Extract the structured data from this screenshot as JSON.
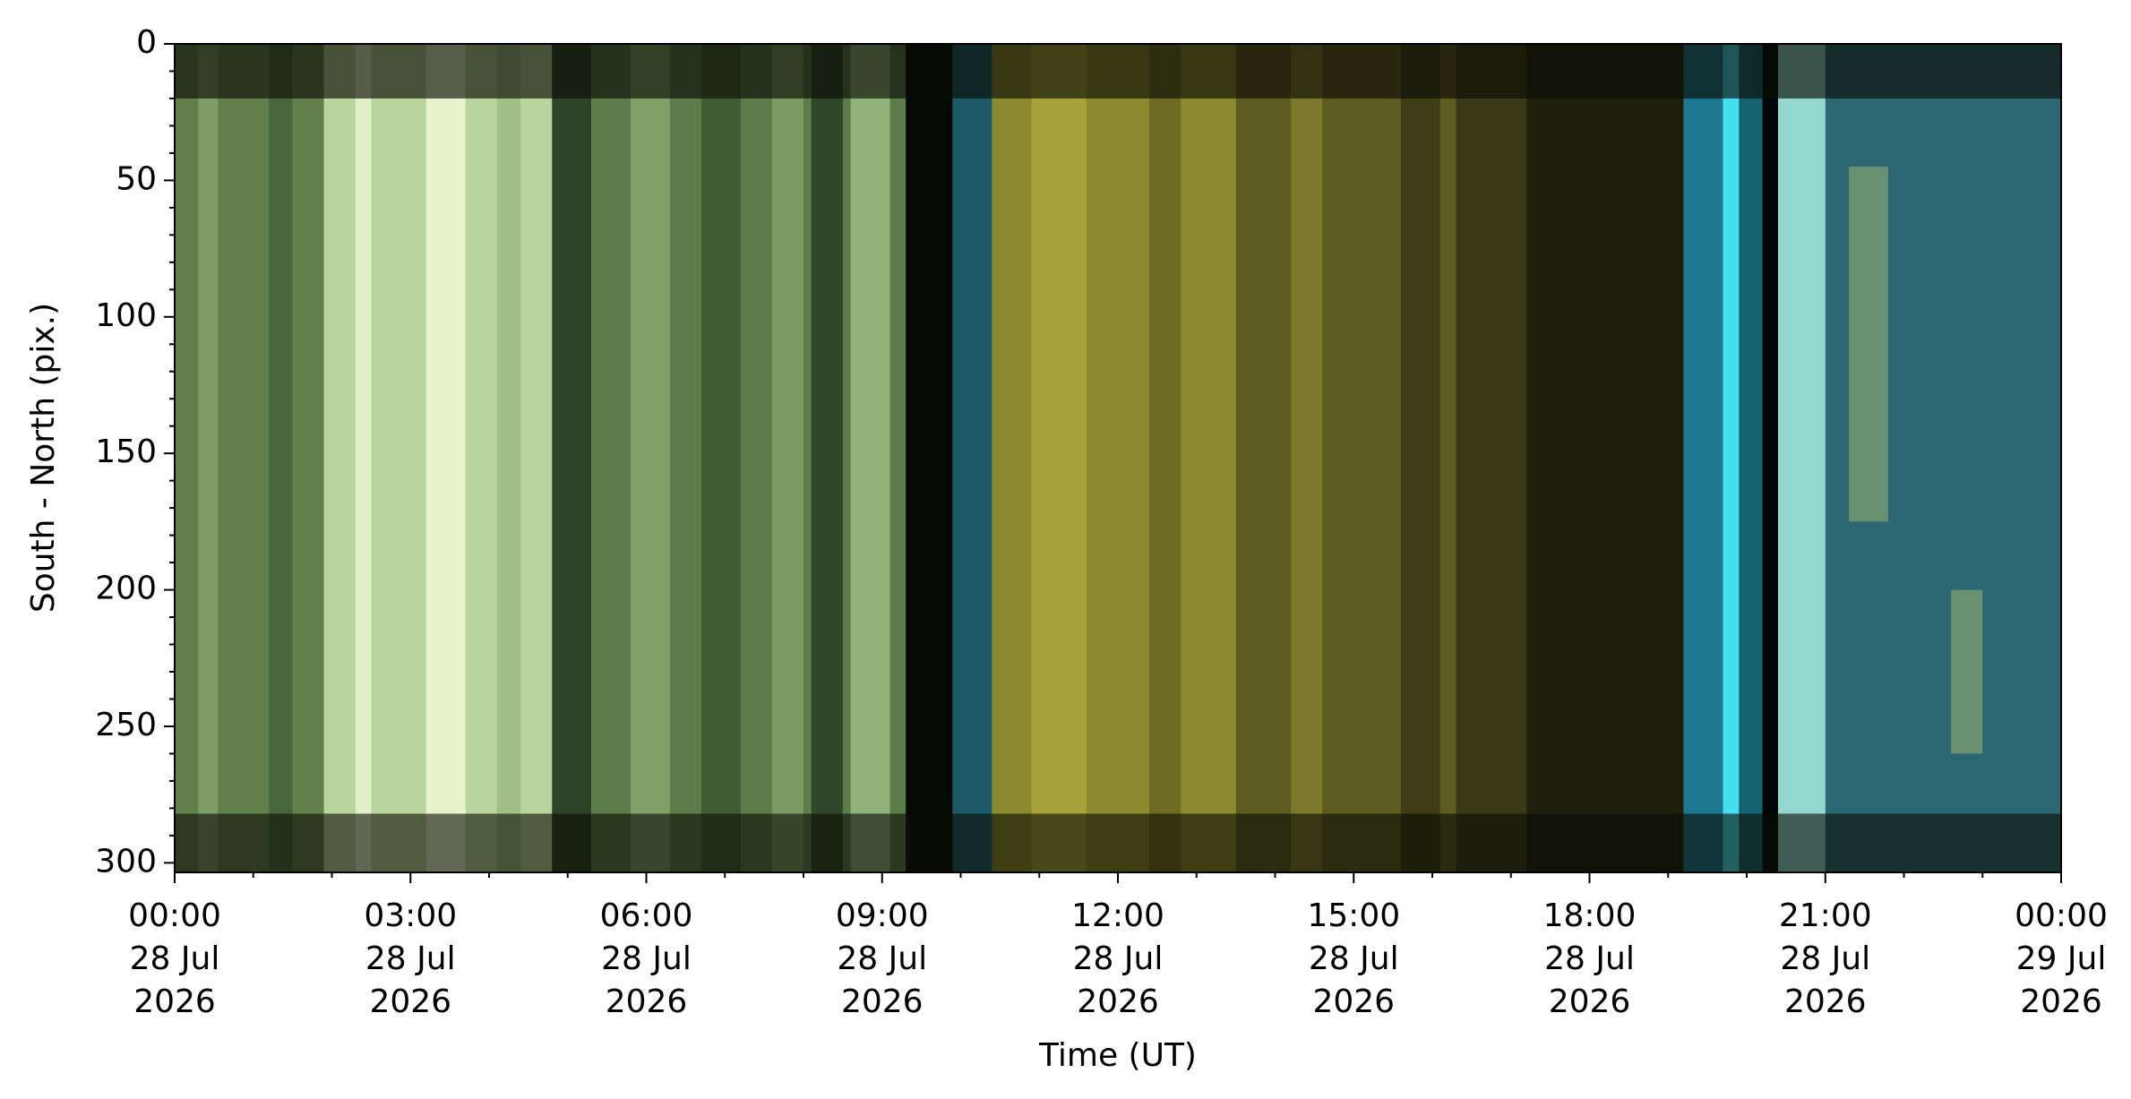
{
  "chart_data": {
    "type": "image",
    "xlabel": "Time (UT)",
    "ylabel": "South - North (pix.)",
    "xlim": [
      "2026-07-28T00:00",
      "2026-07-29T00:00"
    ],
    "xticks": [
      {
        "value": "2026-07-28T00:00",
        "label": [
          "00:00",
          "28 Jul",
          "2026"
        ]
      },
      {
        "value": "2026-07-28T03:00",
        "label": [
          "03:00",
          "28 Jul",
          "2026"
        ]
      },
      {
        "value": "2026-07-28T06:00",
        "label": [
          "06:00",
          "28 Jul",
          "2026"
        ]
      },
      {
        "value": "2026-07-28T09:00",
        "label": [
          "09:00",
          "28 Jul",
          "2026"
        ]
      },
      {
        "value": "2026-07-28T12:00",
        "label": [
          "12:00",
          "28 Jul",
          "2026"
        ]
      },
      {
        "value": "2026-07-28T15:00",
        "label": [
          "15:00",
          "28 Jul",
          "2026"
        ]
      },
      {
        "value": "2026-07-28T18:00",
        "label": [
          "18:00",
          "28 Jul",
          "2026"
        ]
      },
      {
        "value": "2026-07-28T21:00",
        "label": [
          "21:00",
          "28 Jul",
          "2026"
        ]
      },
      {
        "value": "2026-07-29T00:00",
        "label": [
          "00:00",
          "29 Jul",
          "2026"
        ]
      }
    ],
    "xticks_minor": [
      "2026-07-28T01:00",
      "2026-07-28T02:00",
      "2026-07-28T04:00",
      "2026-07-28T05:00",
      "2026-07-28T07:00",
      "2026-07-28T08:00",
      "2026-07-28T10:00",
      "2026-07-28T11:00",
      "2026-07-28T13:00",
      "2026-07-28T14:00",
      "2026-07-28T16:00",
      "2026-07-28T17:00",
      "2026-07-28T19:00",
      "2026-07-28T20:00",
      "2026-07-28T22:00",
      "2026-07-28T23:00"
    ],
    "ylim": [
      303.5,
      0
    ],
    "yticks": [
      0,
      50,
      100,
      150,
      200,
      250,
      300
    ],
    "yticks_minor": [
      10,
      20,
      30,
      40,
      60,
      70,
      80,
      90,
      110,
      120,
      130,
      140,
      160,
      170,
      180,
      190,
      210,
      220,
      230,
      240,
      260,
      270,
      280,
      290
    ]
  }
}
